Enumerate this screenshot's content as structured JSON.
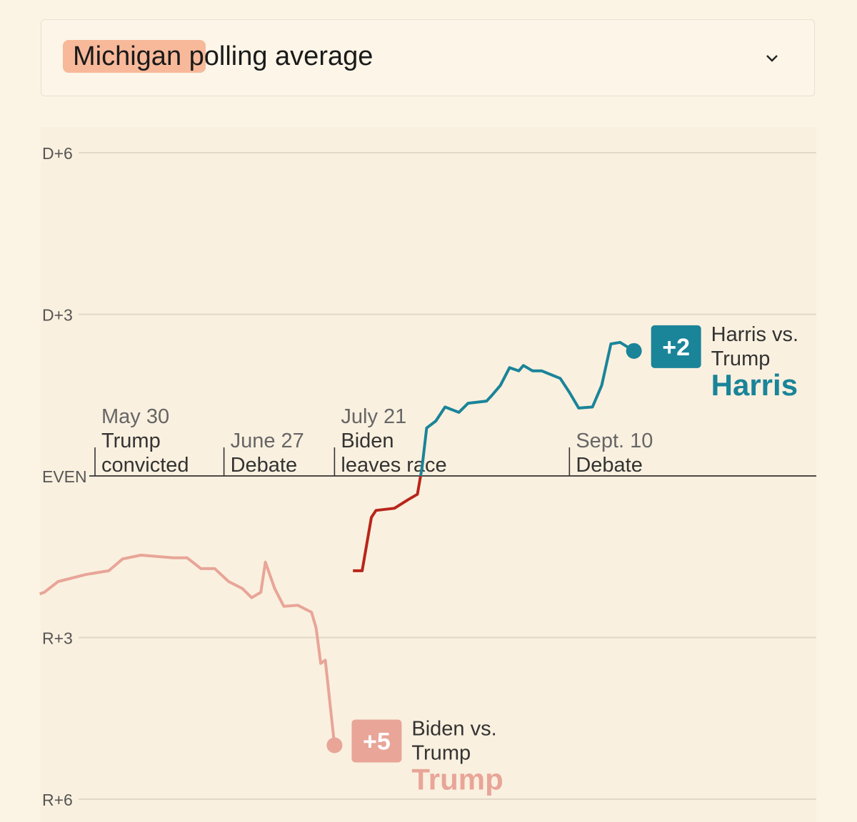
{
  "dropdown": {
    "title": "Michigan polling average",
    "highlight_word": "Michigan",
    "icon": "chevron-down-icon"
  },
  "chart_data": {
    "type": "line",
    "title": "",
    "xlabel": "",
    "ylabel": "",
    "ylim": [
      -6,
      6
    ],
    "y_ticks": [
      {
        "value": 6,
        "label": "D+6"
      },
      {
        "value": 3,
        "label": "D+3"
      },
      {
        "value": 0,
        "label": "EVEN"
      },
      {
        "value": -3,
        "label": "R+3"
      },
      {
        "value": -6,
        "label": "R+6"
      }
    ],
    "xlim": [
      "2024-05-18",
      "2024-09-29"
    ],
    "grid": true,
    "events": [
      {
        "date": "2024-05-30",
        "date_label": "May 30",
        "lines": [
          "Trump",
          "convicted"
        ]
      },
      {
        "date": "2024-06-27",
        "date_label": "June 27",
        "lines": [
          "Debate"
        ]
      },
      {
        "date": "2024-07-21",
        "date_label": "July 21",
        "lines": [
          "Biden",
          "leaves race"
        ]
      },
      {
        "date": "2024-09-10",
        "date_label": "Sept. 10",
        "lines": [
          "Debate"
        ]
      }
    ],
    "series": [
      {
        "name": "Biden vs. Trump",
        "leader": "Trump",
        "end_label": "+5",
        "color": "#e8a598",
        "points": [
          [
            "2024-05-18",
            -2.19
          ],
          [
            "2024-05-19",
            -2.16
          ],
          [
            "2024-05-22",
            -1.96
          ],
          [
            "2024-05-28",
            -1.83
          ],
          [
            "2024-06-02",
            -1.76
          ],
          [
            "2024-06-05",
            -1.54
          ],
          [
            "2024-06-09",
            -1.47
          ],
          [
            "2024-06-16",
            -1.52
          ],
          [
            "2024-06-19",
            -1.52
          ],
          [
            "2024-06-22",
            -1.72
          ],
          [
            "2024-06-25",
            -1.72
          ],
          [
            "2024-06-28",
            -1.96
          ],
          [
            "2024-07-01",
            -2.09
          ],
          [
            "2024-07-03",
            -2.26
          ],
          [
            "2024-07-05",
            -2.16
          ],
          [
            "2024-07-06",
            -1.6
          ],
          [
            "2024-07-08",
            -2.09
          ],
          [
            "2024-07-10",
            -2.42
          ],
          [
            "2024-07-13",
            -2.4
          ],
          [
            "2024-07-16",
            -2.53
          ],
          [
            "2024-07-17",
            -2.82
          ],
          [
            "2024-07-18",
            -3.48
          ],
          [
            "2024-07-19",
            -3.42
          ],
          [
            "2024-07-21",
            -5.0
          ]
        ]
      },
      {
        "name": "Harris vs. Trump",
        "leader": "Harris",
        "end_label": "+2",
        "color": "#1a8499",
        "negative_color": "#b8261b",
        "points": [
          [
            "2024-07-25",
            -1.76
          ],
          [
            "2024-07-27",
            -1.76
          ],
          [
            "2024-07-29",
            -0.77
          ],
          [
            "2024-07-30",
            -0.64
          ],
          [
            "2024-08-03",
            -0.6
          ],
          [
            "2024-08-06",
            -0.44
          ],
          [
            "2024-08-08",
            -0.34
          ],
          [
            "2024-08-09",
            0.16
          ],
          [
            "2024-08-10",
            0.89
          ],
          [
            "2024-08-12",
            1.02
          ],
          [
            "2024-08-14",
            1.28
          ],
          [
            "2024-08-17",
            1.18
          ],
          [
            "2024-08-19",
            1.35
          ],
          [
            "2024-08-23",
            1.39
          ],
          [
            "2024-08-24",
            1.48
          ],
          [
            "2024-08-26",
            1.68
          ],
          [
            "2024-08-28",
            2.01
          ],
          [
            "2024-08-30",
            1.95
          ],
          [
            "2024-08-31",
            2.05
          ],
          [
            "2024-09-02",
            1.95
          ],
          [
            "2024-09-04",
            1.95
          ],
          [
            "2024-09-08",
            1.81
          ],
          [
            "2024-09-10",
            1.55
          ],
          [
            "2024-09-12",
            1.26
          ],
          [
            "2024-09-15",
            1.28
          ],
          [
            "2024-09-17",
            1.68
          ],
          [
            "2024-09-19",
            2.45
          ],
          [
            "2024-09-21",
            2.48
          ],
          [
            "2024-09-24",
            2.32
          ]
        ]
      }
    ]
  }
}
